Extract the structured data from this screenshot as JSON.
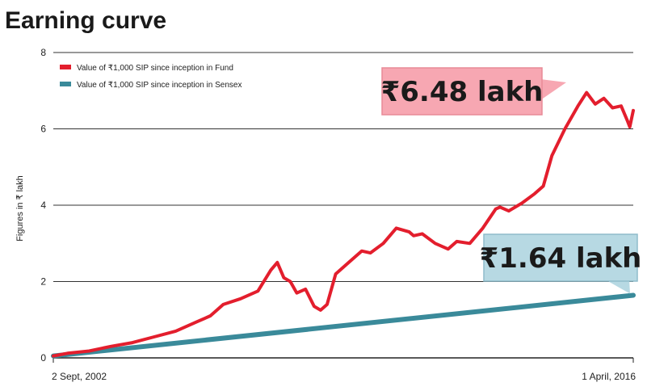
{
  "chart_data": {
    "type": "line",
    "title": "Earning curve",
    "ylabel": "Figures in ₹ lakh",
    "xlabel": "",
    "ylim": [
      0,
      8
    ],
    "yticks": [
      "0",
      "2",
      "4",
      "6",
      "8"
    ],
    "grid": "horizontal",
    "legend_position": "top-left",
    "x_start_label": "2 Sept, 2002",
    "x_end_label": "1 April, 2016",
    "series": [
      {
        "name": "Value of ₹1,000 SIP since inception in Fund",
        "color": "#e31e2d",
        "x": [
          2002.67,
          2003.0,
          2003.5,
          2004.0,
          2004.5,
          2005.0,
          2005.5,
          2006.0,
          2006.3,
          2006.6,
          2007.0,
          2007.4,
          2007.7,
          2007.85,
          2008.0,
          2008.15,
          2008.3,
          2008.5,
          2008.7,
          2008.85,
          2009.0,
          2009.2,
          2009.5,
          2009.8,
          2010.0,
          2010.3,
          2010.6,
          2010.9,
          2011.0,
          2011.2,
          2011.5,
          2011.8,
          2012.0,
          2012.3,
          2012.6,
          2012.9,
          2013.0,
          2013.2,
          2013.5,
          2013.8,
          2014.0,
          2014.2,
          2014.5,
          2014.8,
          2015.0,
          2015.2,
          2015.4,
          2015.6,
          2015.8,
          2015.95,
          2016.0,
          2016.08
        ],
        "values": [
          0.05,
          0.12,
          0.18,
          0.3,
          0.4,
          0.55,
          0.7,
          0.95,
          1.1,
          1.4,
          1.55,
          1.75,
          2.3,
          2.5,
          2.1,
          2.0,
          1.7,
          1.8,
          1.35,
          1.25,
          1.4,
          2.2,
          2.5,
          2.8,
          2.75,
          3.0,
          3.4,
          3.3,
          3.2,
          3.25,
          3.0,
          2.85,
          3.05,
          3.0,
          3.4,
          3.9,
          3.95,
          3.85,
          4.05,
          4.3,
          4.5,
          5.3,
          6.0,
          6.6,
          6.95,
          6.65,
          6.8,
          6.55,
          6.6,
          6.2,
          6.05,
          6.48
        ]
      },
      {
        "name": "Value of ₹1,000 SIP since inception in Sensex",
        "color": "#3a8a9a",
        "x": [
          2002.67,
          2016.08
        ],
        "values": [
          0.05,
          1.64
        ]
      }
    ],
    "x_range": [
      2002.67,
      2016.08
    ],
    "annotations": [
      {
        "text": "₹6.48 lakh",
        "series": 0,
        "fill": "#f7a7b2",
        "border": "#e88a97"
      },
      {
        "text": "₹1.64 lakh",
        "series": 1,
        "fill": "#b7d9e3",
        "border": "#8fbccb"
      }
    ]
  }
}
